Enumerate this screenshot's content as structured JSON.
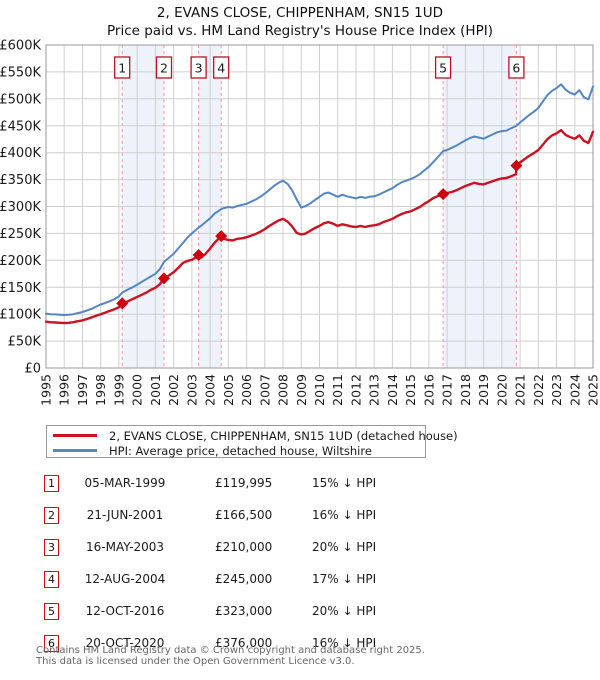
{
  "title": {
    "line1": "2, EVANS CLOSE, CHIPPENHAM, SN15 1UD",
    "line2": "Price paid vs. HM Land Registry's House Price Index (HPI)"
  },
  "legend": {
    "property": "2, EVANS CLOSE, CHIPPENHAM, SN15 1UD (detached house)",
    "hpi": "HPI: Average price, detached house, Wiltshire"
  },
  "table": {
    "rows": [
      {
        "num": "1",
        "date": "05-MAR-1999",
        "price": "£119,995",
        "hpi": "15% ↓ HPI"
      },
      {
        "num": "2",
        "date": "21-JUN-2001",
        "price": "£166,500",
        "hpi": "16% ↓ HPI"
      },
      {
        "num": "3",
        "date": "16-MAY-2003",
        "price": "£210,000",
        "hpi": "20% ↓ HPI"
      },
      {
        "num": "4",
        "date": "12-AUG-2004",
        "price": "£245,000",
        "hpi": "17% ↓ HPI"
      },
      {
        "num": "5",
        "date": "12-OCT-2016",
        "price": "£323,000",
        "hpi": "20% ↓ HPI"
      },
      {
        "num": "6",
        "date": "20-OCT-2020",
        "price": "£376,000",
        "hpi": "16% ↓ HPI"
      }
    ]
  },
  "footer": {
    "line1": "Contains HM Land Registry data © Crown copyright and database right 2025.",
    "line2": "This data is licensed under the Open Government Licence v3.0."
  },
  "chart_data": {
    "type": "line",
    "title": "2, EVANS CLOSE, CHIPPENHAM, SN15 1UD — Price paid vs. HM Land Registry's House Price Index (HPI)",
    "unit": "GBP thousands",
    "x_min": 1995,
    "x_max": 2025,
    "y_maxK": 600,
    "x_ticks": [
      1995,
      1996,
      1997,
      1998,
      1999,
      2000,
      2001,
      2002,
      2003,
      2004,
      2005,
      2006,
      2007,
      2008,
      2009,
      2010,
      2011,
      2012,
      2013,
      2014,
      2015,
      2016,
      2017,
      2018,
      2019,
      2020,
      2021,
      2022,
      2023,
      2024,
      2025
    ],
    "y_ticks": [
      {
        "v": 0,
        "label": "£0"
      },
      {
        "v": 50,
        "label": "£50K"
      },
      {
        "v": 100,
        "label": "£100K"
      },
      {
        "v": 150,
        "label": "£150K"
      },
      {
        "v": 200,
        "label": "£200K"
      },
      {
        "v": 250,
        "label": "£250K"
      },
      {
        "v": 300,
        "label": "£300K"
      },
      {
        "v": 350,
        "label": "£350K"
      },
      {
        "v": 400,
        "label": "£400K"
      },
      {
        "v": 450,
        "label": "£450K"
      },
      {
        "v": 500,
        "label": "£500K"
      },
      {
        "v": 550,
        "label": "£550K"
      },
      {
        "v": 600,
        "label": "£600K"
      }
    ],
    "colors": {
      "property": "#cc1122",
      "hpi": "#5585c2",
      "band": "#edf2fb",
      "sale_line": "#f49898",
      "marker": "#cc0011",
      "badge_border": "#bb1122",
      "grid": "#cfcfcf",
      "border": "#999999"
    },
    "ownership_bands": [
      [
        1999.18,
        2001.47
      ],
      [
        2003.37,
        2004.61
      ],
      [
        2016.78,
        2020.8
      ]
    ],
    "sales": [
      {
        "n": "1",
        "year": 1999.18,
        "priceK": 120,
        "date": "05-MAR-1999",
        "price": "£119,995",
        "vs_hpi": "15% ↓ HPI"
      },
      {
        "n": "2",
        "year": 2001.47,
        "priceK": 166.5,
        "date": "21-JUN-2001",
        "price": "£166,500",
        "vs_hpi": "16% ↓ HPI"
      },
      {
        "n": "3",
        "year": 2003.37,
        "priceK": 210,
        "date": "16-MAY-2003",
        "price": "£210,000",
        "vs_hpi": "20% ↓ HPI"
      },
      {
        "n": "4",
        "year": 2004.61,
        "priceK": 245,
        "date": "12-AUG-2004",
        "price": "£245,000",
        "vs_hpi": "17% ↓ HPI"
      },
      {
        "n": "5",
        "year": 2016.78,
        "priceK": 323,
        "date": "12-OCT-2016",
        "price": "£323,000",
        "vs_hpi": "20% ↓ HPI"
      },
      {
        "n": "6",
        "year": 2020.8,
        "priceK": 376,
        "date": "20-OCT-2020",
        "price": "£376,000",
        "vs_hpi": "16% ↓ HPI"
      }
    ],
    "series": [
      {
        "name": "HPI: Average price, detached house, Wiltshire",
        "color": "#5585c2",
        "width": 2,
        "points": [
          [
            1995,
            101
          ],
          [
            1995.25,
            100
          ],
          [
            1995.5,
            99.5
          ],
          [
            1995.75,
            99
          ],
          [
            1996,
            98.5
          ],
          [
            1996.25,
            99
          ],
          [
            1996.5,
            100
          ],
          [
            1996.75,
            102
          ],
          [
            1997,
            104
          ],
          [
            1997.25,
            107
          ],
          [
            1997.5,
            110
          ],
          [
            1997.75,
            114
          ],
          [
            1998,
            118
          ],
          [
            1998.25,
            121
          ],
          [
            1998.5,
            124
          ],
          [
            1998.75,
            128
          ],
          [
            1999,
            133
          ],
          [
            1999.18,
            140
          ],
          [
            1999.5,
            146
          ],
          [
            1999.75,
            150
          ],
          [
            2000,
            155
          ],
          [
            2000.25,
            160
          ],
          [
            2000.5,
            165
          ],
          [
            2000.75,
            170
          ],
          [
            2001,
            175
          ],
          [
            2001.25,
            184
          ],
          [
            2001.47,
            197
          ],
          [
            2001.75,
            205
          ],
          [
            2002,
            212
          ],
          [
            2002.25,
            222
          ],
          [
            2002.5,
            232
          ],
          [
            2002.75,
            242
          ],
          [
            2003,
            250
          ],
          [
            2003.37,
            261
          ],
          [
            2003.5,
            264
          ],
          [
            2003.75,
            271
          ],
          [
            2004,
            278
          ],
          [
            2004.25,
            287
          ],
          [
            2004.61,
            295
          ],
          [
            2004.75,
            297
          ],
          [
            2005,
            299
          ],
          [
            2005.25,
            298
          ],
          [
            2005.5,
            301
          ],
          [
            2005.75,
            303
          ],
          [
            2006,
            305
          ],
          [
            2006.25,
            309
          ],
          [
            2006.5,
            313
          ],
          [
            2006.75,
            318
          ],
          [
            2007,
            324
          ],
          [
            2007.25,
            331
          ],
          [
            2007.5,
            338
          ],
          [
            2007.75,
            344
          ],
          [
            2008,
            348
          ],
          [
            2008.25,
            342
          ],
          [
            2008.5,
            330
          ],
          [
            2008.75,
            313
          ],
          [
            2009,
            298
          ],
          [
            2009.25,
            301
          ],
          [
            2009.5,
            306
          ],
          [
            2009.75,
            312
          ],
          [
            2010,
            318
          ],
          [
            2010.25,
            324
          ],
          [
            2010.5,
            326
          ],
          [
            2010.75,
            322
          ],
          [
            2011,
            318
          ],
          [
            2011.25,
            322
          ],
          [
            2011.5,
            319
          ],
          [
            2011.75,
            317
          ],
          [
            2012,
            315
          ],
          [
            2012.25,
            318
          ],
          [
            2012.5,
            316
          ],
          [
            2012.75,
            318
          ],
          [
            2013,
            319
          ],
          [
            2013.25,
            322
          ],
          [
            2013.5,
            326
          ],
          [
            2013.75,
            330
          ],
          [
            2014,
            334
          ],
          [
            2014.25,
            340
          ],
          [
            2014.5,
            345
          ],
          [
            2014.75,
            348
          ],
          [
            2015,
            351
          ],
          [
            2015.25,
            355
          ],
          [
            2015.5,
            360
          ],
          [
            2015.75,
            367
          ],
          [
            2016,
            374
          ],
          [
            2016.25,
            383
          ],
          [
            2016.5,
            392
          ],
          [
            2016.78,
            403
          ],
          [
            2017,
            405
          ],
          [
            2017.25,
            409
          ],
          [
            2017.5,
            413
          ],
          [
            2017.75,
            418
          ],
          [
            2018,
            423
          ],
          [
            2018.25,
            427
          ],
          [
            2018.5,
            430
          ],
          [
            2018.75,
            428
          ],
          [
            2019,
            426
          ],
          [
            2019.25,
            430
          ],
          [
            2019.5,
            434
          ],
          [
            2019.75,
            438
          ],
          [
            2020,
            440
          ],
          [
            2020.25,
            441
          ],
          [
            2020.5,
            445
          ],
          [
            2020.8,
            450
          ],
          [
            2021,
            456
          ],
          [
            2021.25,
            463
          ],
          [
            2021.5,
            470
          ],
          [
            2021.75,
            476
          ],
          [
            2022,
            483
          ],
          [
            2022.25,
            495
          ],
          [
            2022.5,
            507
          ],
          [
            2022.75,
            515
          ],
          [
            2023,
            520
          ],
          [
            2023.25,
            527
          ],
          [
            2023.5,
            517
          ],
          [
            2023.75,
            511
          ],
          [
            2024,
            508
          ],
          [
            2024.25,
            516
          ],
          [
            2024.5,
            503
          ],
          [
            2024.75,
            499
          ],
          [
            2025,
            523
          ]
        ]
      },
      {
        "name": "2, EVANS CLOSE, CHIPPENHAM, SN15 1UD (detached house)",
        "color": "#cc1122",
        "width": 2.4,
        "points": [
          [
            1995,
            86
          ],
          [
            1995.25,
            85
          ],
          [
            1995.5,
            84.5
          ],
          [
            1995.75,
            84
          ],
          [
            1996,
            83.5
          ],
          [
            1996.25,
            84
          ],
          [
            1996.5,
            85
          ],
          [
            1996.75,
            87
          ],
          [
            1997,
            88.5
          ],
          [
            1997.25,
            91
          ],
          [
            1997.5,
            94
          ],
          [
            1997.75,
            97
          ],
          [
            1998,
            100
          ],
          [
            1998.25,
            103
          ],
          [
            1998.5,
            106
          ],
          [
            1998.75,
            109
          ],
          [
            1999,
            113
          ],
          [
            1999.18,
            120
          ],
          [
            1999.5,
            124
          ],
          [
            1999.75,
            128
          ],
          [
            2000,
            132
          ],
          [
            2000.25,
            136
          ],
          [
            2000.5,
            140
          ],
          [
            2000.75,
            145
          ],
          [
            2001,
            149
          ],
          [
            2001.25,
            156
          ],
          [
            2001.47,
            166.5
          ],
          [
            2001.75,
            172
          ],
          [
            2002,
            178
          ],
          [
            2002.25,
            186
          ],
          [
            2002.5,
            195
          ],
          [
            2002.75,
            199
          ],
          [
            2003,
            201
          ],
          [
            2003.25,
            206
          ],
          [
            2003.37,
            210
          ],
          [
            2003.5,
            205
          ],
          [
            2003.75,
            212
          ],
          [
            2004,
            222
          ],
          [
            2004.25,
            233
          ],
          [
            2004.61,
            245
          ],
          [
            2004.75,
            240
          ],
          [
            2005,
            238
          ],
          [
            2005.25,
            237
          ],
          [
            2005.5,
            240
          ],
          [
            2005.75,
            241
          ],
          [
            2006,
            243
          ],
          [
            2006.25,
            246
          ],
          [
            2006.5,
            249
          ],
          [
            2006.75,
            253
          ],
          [
            2007,
            258
          ],
          [
            2007.25,
            264
          ],
          [
            2007.5,
            269
          ],
          [
            2007.75,
            274
          ],
          [
            2008,
            277
          ],
          [
            2008.25,
            272
          ],
          [
            2008.5,
            263
          ],
          [
            2008.75,
            251
          ],
          [
            2009,
            248
          ],
          [
            2009.25,
            250
          ],
          [
            2009.5,
            255
          ],
          [
            2009.75,
            260
          ],
          [
            2010,
            264
          ],
          [
            2010.25,
            269
          ],
          [
            2010.5,
            271
          ],
          [
            2010.75,
            268
          ],
          [
            2011,
            264
          ],
          [
            2011.25,
            267
          ],
          [
            2011.5,
            265
          ],
          [
            2011.75,
            263
          ],
          [
            2012,
            262
          ],
          [
            2012.25,
            264
          ],
          [
            2012.5,
            262
          ],
          [
            2012.75,
            264
          ],
          [
            2013,
            265
          ],
          [
            2013.25,
            267
          ],
          [
            2013.5,
            271
          ],
          [
            2013.75,
            274
          ],
          [
            2014,
            277
          ],
          [
            2014.25,
            282
          ],
          [
            2014.5,
            286
          ],
          [
            2014.75,
            289
          ],
          [
            2015,
            291
          ],
          [
            2015.25,
            295
          ],
          [
            2015.5,
            299
          ],
          [
            2015.75,
            305
          ],
          [
            2016,
            310
          ],
          [
            2016.25,
            316
          ],
          [
            2016.78,
            323
          ],
          [
            2017,
            325
          ],
          [
            2017.25,
            327
          ],
          [
            2017.5,
            330
          ],
          [
            2017.75,
            334
          ],
          [
            2018,
            338
          ],
          [
            2018.25,
            341
          ],
          [
            2018.5,
            344
          ],
          [
            2018.75,
            342
          ],
          [
            2019,
            341
          ],
          [
            2019.25,
            344
          ],
          [
            2019.5,
            347
          ],
          [
            2019.75,
            350
          ],
          [
            2020,
            352
          ],
          [
            2020.25,
            353
          ],
          [
            2020.5,
            356
          ],
          [
            2020.78,
            360
          ],
          [
            2020.8,
            376
          ],
          [
            2021,
            382
          ],
          [
            2021.25,
            388
          ],
          [
            2021.5,
            394
          ],
          [
            2021.75,
            399
          ],
          [
            2022,
            405
          ],
          [
            2022.25,
            415
          ],
          [
            2022.5,
            425
          ],
          [
            2022.75,
            432
          ],
          [
            2023,
            436
          ],
          [
            2023.25,
            442
          ],
          [
            2023.5,
            433
          ],
          [
            2023.75,
            429
          ],
          [
            2024,
            426
          ],
          [
            2024.25,
            432
          ],
          [
            2024.5,
            422
          ],
          [
            2024.75,
            418
          ],
          [
            2025,
            439
          ]
        ]
      }
    ]
  }
}
